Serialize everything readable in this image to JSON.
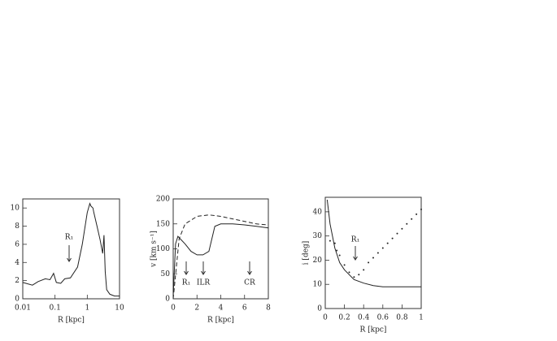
{
  "chart_data": [
    {
      "type": "line",
      "xlabel": "R [kpc]",
      "xscale": "log",
      "xlim": [
        0.01,
        10
      ],
      "xticks": [
        0.01,
        0.1,
        1,
        10
      ],
      "ylim": [
        0,
        11
      ],
      "yticks": [
        0,
        2,
        4,
        6,
        8,
        10
      ],
      "annotations": [
        "R₁"
      ],
      "series": [
        {
          "color": "#222",
          "style": "solid",
          "x": [
            0.01,
            0.02,
            0.03,
            0.05,
            0.07,
            0.09,
            0.11,
            0.15,
            0.2,
            0.3,
            0.5,
            0.7,
            1.0,
            1.2,
            1.3,
            1.5,
            1.6,
            2.0,
            2.5,
            3.0,
            3.3,
            3.6,
            4,
            5,
            7,
            10
          ],
          "values": [
            1.8,
            1.5,
            1.9,
            2.2,
            2.1,
            2.8,
            1.8,
            1.7,
            2.2,
            2.3,
            3.5,
            6,
            9.5,
            10.5,
            10.2,
            10,
            9.5,
            8,
            6.5,
            5,
            7,
            3,
            1,
            0.5,
            0.3,
            0.3
          ]
        }
      ]
    },
    {
      "type": "line",
      "ylabel": "v [km s⁻¹]",
      "xlabel": "R [kpc]",
      "xlim": [
        0,
        8
      ],
      "xticks": [
        0,
        2,
        4,
        6,
        8
      ],
      "ylim": [
        0,
        200
      ],
      "yticks": [
        0,
        50,
        100,
        150,
        200
      ],
      "annotations": [
        "R₁",
        "ILR",
        "CR"
      ],
      "series": [
        {
          "color": "#222",
          "style": "solid",
          "x": [
            0,
            0.2,
            0.4,
            1,
            1.5,
            2,
            2.5,
            3,
            3.5,
            4,
            5,
            6,
            7,
            8
          ],
          "values": [
            5,
            110,
            125,
            110,
            95,
            88,
            88,
            95,
            145,
            150,
            150,
            148,
            145,
            142
          ]
        },
        {
          "color": "#222",
          "style": "dashed",
          "x": [
            0,
            0.5,
            1,
            2,
            3,
            4,
            5,
            6,
            7,
            8
          ],
          "values": [
            0,
            120,
            150,
            165,
            168,
            165,
            160,
            155,
            150,
            148
          ]
        }
      ]
    },
    {
      "type": "line",
      "ylabel": "i [deg]",
      "xlabel": "R [kpc]",
      "xlim": [
        0,
        1
      ],
      "xticks": [
        0,
        0.2,
        0.4,
        0.6,
        0.8,
        1
      ],
      "ylim": [
        0,
        46
      ],
      "yticks": [
        0,
        10,
        20,
        30,
        40
      ],
      "annotations": [
        "R₁"
      ],
      "series": [
        {
          "color": "#222",
          "style": "solid",
          "x": [
            0.02,
            0.05,
            0.1,
            0.15,
            0.2,
            0.3,
            0.4,
            0.5,
            0.6,
            0.8,
            1
          ],
          "values": [
            45,
            35,
            25,
            19,
            16,
            12,
            10.5,
            9.5,
            9,
            9,
            9
          ]
        },
        {
          "color": "#222",
          "style": "points",
          "x": [
            0.05,
            0.1,
            0.12,
            0.15,
            0.2,
            0.25,
            0.3,
            0.35,
            0.4,
            0.45,
            0.5,
            0.55,
            0.6,
            0.65,
            0.7,
            0.75,
            0.8,
            0.85,
            0.9,
            0.95,
            1
          ],
          "values": [
            28,
            27,
            24,
            22,
            18,
            15,
            13,
            14,
            16,
            19,
            21,
            23,
            25,
            27,
            29,
            31,
            33,
            35,
            37,
            39,
            41
          ]
        }
      ]
    }
  ]
}
